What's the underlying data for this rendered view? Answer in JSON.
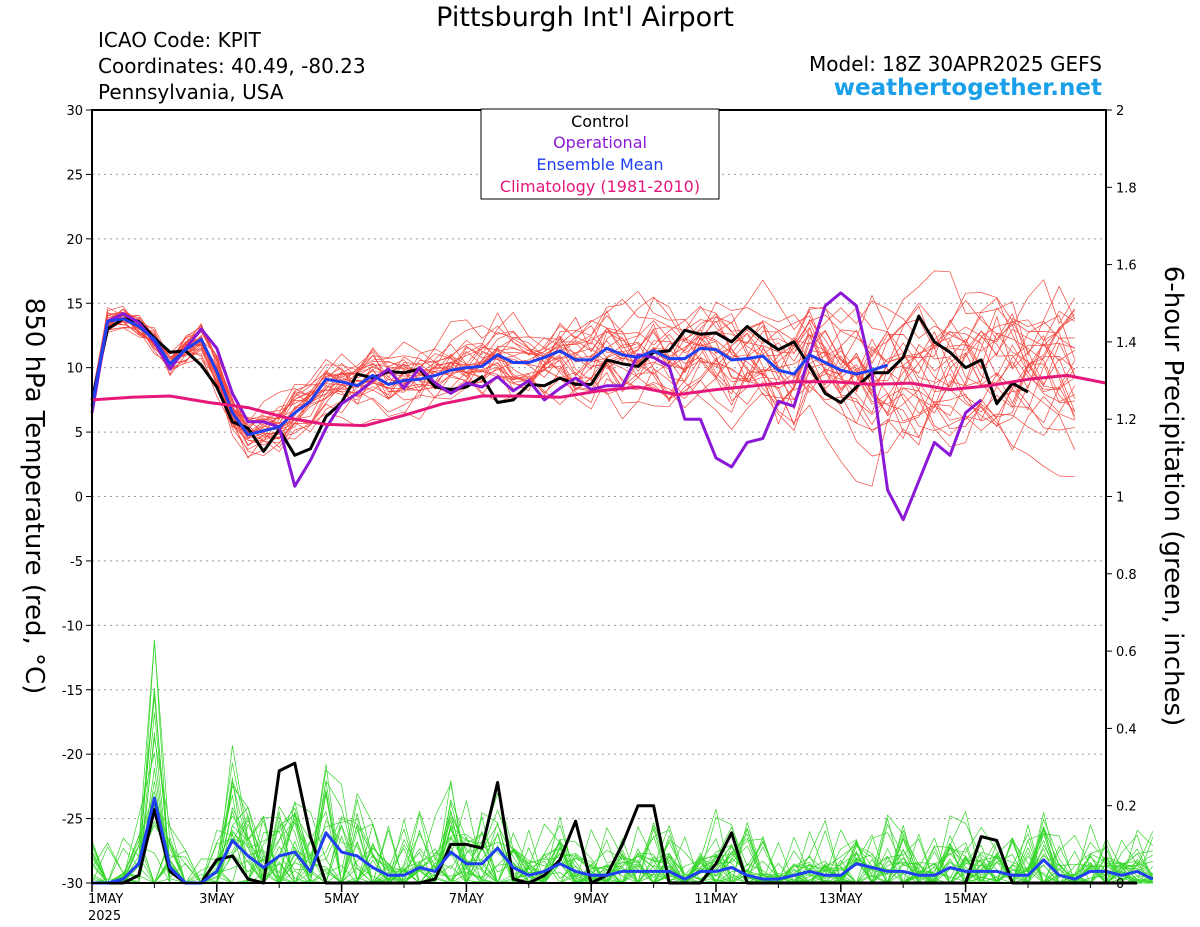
{
  "header": {
    "title": "Pittsburgh Int'l Airport",
    "icao": "ICAO Code: KPIT",
    "coordinates": "Coordinates: 40.49, -80.23",
    "region": "Pennsylvania, USA",
    "model": "Model: 18Z 30APR2025 GEFS",
    "site": "weathertogether.net",
    "site_color": "#1aa0e8"
  },
  "chart_data": {
    "type": "line",
    "y_left_label": "850 hPa Temperature (red, °C)",
    "y_right_label": "6-hour Precipitation (green, inches)",
    "y_left_range": [
      -30,
      30
    ],
    "y_left_ticks": [
      "30",
      "25",
      "20",
      "15",
      "10",
      "5",
      "0",
      "-5",
      "-10",
      "-15",
      "-20",
      "-25",
      "-30"
    ],
    "y_right_range": [
      0,
      2
    ],
    "y_right_ticks": [
      "2",
      "1.8",
      "1.6",
      "1.4",
      "1.2",
      "1",
      "0.8",
      "0.6",
      "0.4",
      "0.2",
      "0"
    ],
    "x_range_days": [
      1,
      17.25
    ],
    "x_ticks": [
      {
        "day": 1,
        "label": "1MAY",
        "sub": "2025"
      },
      {
        "day": 3,
        "label": "3MAY"
      },
      {
        "day": 5,
        "label": "5MAY"
      },
      {
        "day": 7,
        "label": "7MAY"
      },
      {
        "day": 9,
        "label": "9MAY"
      },
      {
        "day": 11,
        "label": "11MAY"
      },
      {
        "day": 13,
        "label": "13MAY"
      },
      {
        "day": 15,
        "label": "15MAY"
      }
    ],
    "grid": true,
    "time_step_hours": 6,
    "start": "1MAY 00Z",
    "legend": {
      "placement": "top-center",
      "entries": [
        {
          "label": "Control",
          "color": "#000000"
        },
        {
          "label": "Operational",
          "color": "#8a18d6"
        },
        {
          "label": "Ensemble Mean",
          "color": "#1f3ff0"
        },
        {
          "label": "Climatology (1981-2010)",
          "color": "#e5177a"
        }
      ]
    },
    "colors": {
      "members_temp": "#f4473e",
      "members_precip": "#35d62a",
      "control": "#000000",
      "operational": "#8a18d6",
      "mean": "#1f3ff0",
      "climatology": "#e5177a"
    },
    "temperature_series": [
      {
        "name": "Control",
        "values": [
          7.5,
          13,
          13.8,
          13.6,
          12.3,
          11.2,
          11.3,
          10.2,
          8.5,
          5.8,
          5.3,
          3.5,
          5.2,
          3.2,
          3.7,
          6.2,
          7.3,
          9.5,
          9.2,
          9.7,
          9.6,
          9.9,
          8.5,
          8.3,
          8.5,
          9.3,
          7.3,
          7.5,
          8.7,
          8.6,
          9.2,
          8.7,
          8.7,
          10.6,
          10.3,
          10.1,
          11.2,
          11.3,
          12.9,
          12.6,
          12.7,
          12,
          13.2,
          12.2,
          11.4,
          12,
          10.1,
          8,
          7.3,
          8.5,
          9.6,
          9.6,
          10.8,
          14,
          12,
          11.2,
          10,
          10.6,
          7.2,
          8.8,
          8.1
        ]
      },
      {
        "name": "Operational",
        "values": [
          6.5,
          13.6,
          14.2,
          13.5,
          12,
          9.9,
          11.5,
          13,
          11.5,
          8,
          5.8,
          5.8,
          5.4,
          0.8,
          2.8,
          5.3,
          7.2,
          8,
          9,
          9.9,
          8.4,
          10,
          8.8,
          8,
          8.8,
          8.5,
          9.3,
          8.2,
          9,
          7.5,
          8.4,
          9.2,
          8.3,
          8.6,
          8.6,
          11,
          10.8,
          10.1,
          6,
          6,
          3,
          2.3,
          4.2,
          4.5,
          7.4,
          7,
          11,
          14.8,
          15.8,
          14.8,
          9.5,
          0.5,
          -1.8,
          1.2,
          4.2,
          3.2,
          6.5,
          7.5
        ]
      },
      {
        "name": "Ensemble Mean",
        "values": [
          7,
          13.6,
          13.8,
          13.2,
          12.2,
          10.3,
          11.4,
          12.2,
          9.7,
          6.5,
          4.8,
          5.1,
          5.4,
          6.5,
          7.4,
          9.1,
          8.9,
          8.6,
          9.4,
          8.7,
          9,
          9.1,
          9.4,
          9.8,
          10,
          10.1,
          11,
          10.4,
          10.4,
          10.8,
          11.3,
          10.6,
          10.6,
          11.5,
          11,
          10.8,
          11.3,
          10.7,
          10.7,
          11.5,
          11.4,
          10.6,
          10.7,
          10.9,
          9.8,
          9.5,
          11,
          10.4,
          9.8,
          9.5,
          9.8,
          10.2
        ]
      },
      {
        "name": "Climatology (1981-2010)",
        "values": [
          7.5,
          7.7,
          7.8,
          7.3,
          6.9,
          6.1,
          5.6,
          5.5,
          6.3,
          7.2,
          7.8,
          7.8,
          7.7,
          8.2,
          8.5,
          7.9,
          8.3,
          8.6,
          8.9,
          8.9,
          8.7,
          8.8,
          8.3,
          8.6,
          9.1,
          9.4,
          8.8
        ]
      }
    ],
    "precipitation_series": [
      {
        "name": "Control",
        "values": [
          0,
          0,
          0,
          0.02,
          0.19,
          0.03,
          0,
          0,
          0.06,
          0.07,
          0.01,
          0,
          0.29,
          0.31,
          0.12,
          0,
          0,
          0,
          0,
          0,
          0,
          0,
          0.01,
          0.1,
          0.1,
          0.09,
          0.26,
          0.01,
          0,
          0.02,
          0.06,
          0.16,
          0,
          0.02,
          0.1,
          0.2,
          0.2,
          0,
          0,
          0,
          0.05,
          0.13,
          0,
          0,
          0,
          0,
          0,
          0,
          0,
          0,
          0,
          0,
          0,
          0,
          0,
          0,
          0,
          0.12,
          0.11,
          0,
          0,
          0,
          0,
          0,
          0,
          0,
          0,
          0
        ]
      },
      {
        "name": "Ensemble Mean",
        "values": [
          0,
          0,
          0.01,
          0.05,
          0.22,
          0.04,
          0,
          0,
          0.03,
          0.11,
          0.07,
          0.04,
          0.07,
          0.08,
          0.03,
          0.13,
          0.08,
          0.07,
          0.04,
          0.02,
          0.02,
          0.04,
          0.03,
          0.08,
          0.05,
          0.05,
          0.09,
          0.04,
          0.02,
          0.03,
          0.05,
          0.03,
          0.02,
          0.02,
          0.03,
          0.03,
          0.03,
          0.03,
          0.01,
          0.03,
          0.03,
          0.04,
          0.02,
          0.01,
          0.01,
          0.02,
          0.03,
          0.02,
          0.02,
          0.05,
          0.04,
          0.03,
          0.03,
          0.02,
          0.02,
          0.04,
          0.03,
          0.03,
          0.03,
          0.02,
          0.02,
          0.06,
          0.02,
          0.01,
          0.03,
          0.03,
          0.02,
          0.03,
          0.01
        ]
      }
    ]
  }
}
